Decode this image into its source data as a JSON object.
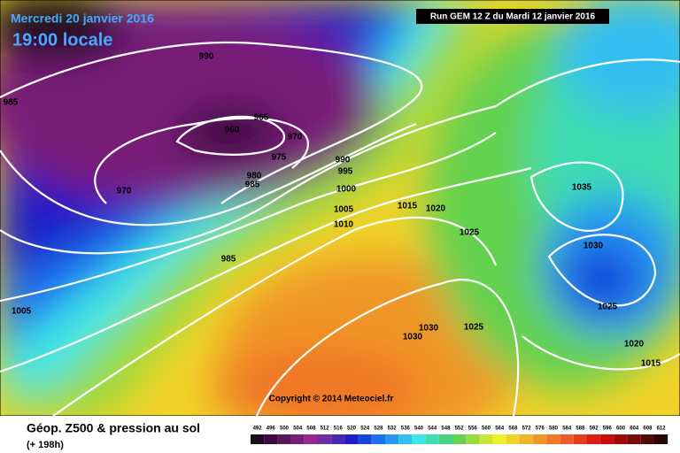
{
  "header": {
    "date": "Mercredi 20 janvier 2016",
    "time": "19:00 locale",
    "run": "Run GEM 12 Z du Mardi 12 janvier 2016"
  },
  "copyright": "Copyright © 2014 Meteociel.fr",
  "footer": {
    "title": "Géop. Z500 & pression au sol",
    "lead": "(+ 198h)"
  },
  "isobar_labels": [
    990,
    985,
    965,
    960,
    970,
    975,
    970,
    980,
    985,
    990,
    995,
    1000,
    1005,
    1010,
    1015,
    1020,
    1025,
    985,
    1005,
    1035,
    1030,
    1025,
    1030,
    1030,
    1025,
    1020,
    1015
  ],
  "scale": {
    "values": [
      492,
      496,
      500,
      504,
      508,
      512,
      516,
      520,
      524,
      528,
      532,
      536,
      540,
      544,
      548,
      552,
      556,
      560,
      564,
      568,
      572,
      576,
      580,
      584,
      588,
      592,
      596,
      600,
      604,
      608,
      612
    ],
    "colors": [
      "#1e0a1e",
      "#3c0a3c",
      "#5a145a",
      "#781e78",
      "#962896",
      "#6e2da0",
      "#4628b4",
      "#1e1ec8",
      "#1446dc",
      "#1e6ef0",
      "#2896f0",
      "#32bef0",
      "#3ce6e6",
      "#3cdcb4",
      "#46d282",
      "#64d250",
      "#96dc3c",
      "#c8e632",
      "#f0f028",
      "#f0d228",
      "#f0b428",
      "#f09628",
      "#f07828",
      "#f05a28",
      "#e63c1e",
      "#dc1e14",
      "#c80a0a",
      "#a00a0a",
      "#780a0a",
      "#500a0a",
      "#280505"
    ]
  }
}
